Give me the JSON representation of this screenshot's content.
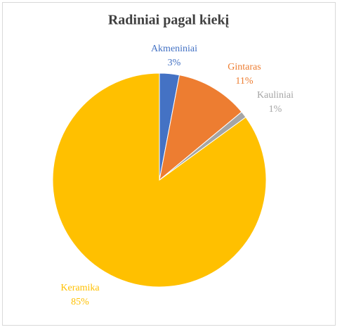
{
  "chart_data": {
    "type": "pie",
    "title": "Radiniai pagal kiekį",
    "categories": [
      "Akmeniniai",
      "Gintaras",
      "Kauliniai",
      "Keramika"
    ],
    "values": [
      3,
      11,
      1,
      85
    ],
    "value_labels": [
      "3%",
      "11%",
      "1%",
      "85%"
    ],
    "colors": [
      "#4472c4",
      "#ed7d31",
      "#a5a5a5",
      "#ffc000"
    ]
  }
}
